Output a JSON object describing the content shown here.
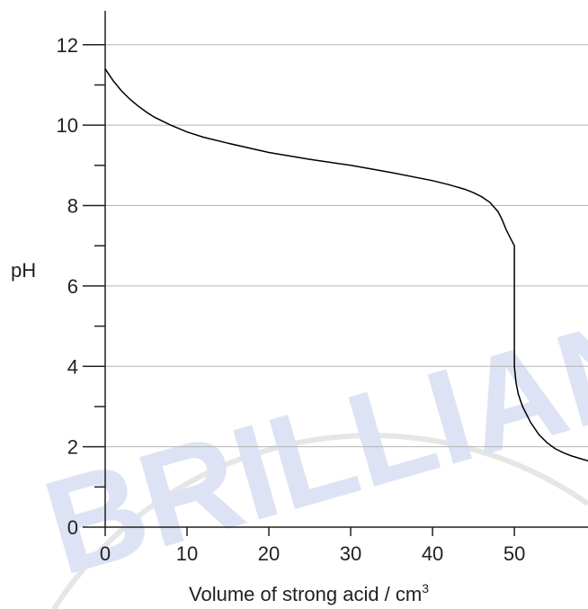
{
  "chart_data": {
    "type": "line",
    "xlabel": "Volume of strong acid / cm",
    "xlabel_superscript": "3",
    "ylabel": "pH",
    "xlim": [
      0,
      59
    ],
    "ylim": [
      0,
      12.8
    ],
    "x_ticks": [
      "0",
      "10",
      "20",
      "30",
      "40",
      "50"
    ],
    "y_ticks": [
      "0",
      "2",
      "4",
      "6",
      "8",
      "10",
      "12"
    ],
    "grid": "horizontal at even pH values",
    "series": [
      {
        "x": [
          0,
          1,
          2,
          3,
          4,
          5,
          6,
          8,
          10,
          12,
          15,
          20,
          25,
          30,
          35,
          40,
          42,
          44,
          45,
          46,
          47,
          48,
          48.5,
          49,
          49.5,
          50,
          50,
          50.2,
          50.5,
          51,
          52,
          53,
          54,
          55,
          56,
          57,
          58,
          59
        ],
        "y": [
          11.4,
          11.1,
          10.85,
          10.65,
          10.48,
          10.33,
          10.2,
          10.0,
          9.83,
          9.7,
          9.55,
          9.32,
          9.15,
          9.0,
          8.82,
          8.62,
          8.52,
          8.4,
          8.32,
          8.22,
          8.08,
          7.85,
          7.65,
          7.4,
          7.2,
          7.0,
          4.0,
          3.6,
          3.3,
          3.0,
          2.6,
          2.3,
          2.1,
          1.95,
          1.85,
          1.77,
          1.71,
          1.65
        ],
        "color": "#000000"
      }
    ],
    "watermark": "BRILLIAN",
    "colors": {
      "axis": "#231f20",
      "grid": "#b4b4b4",
      "line": "#000000",
      "watermark": "#dde3f4"
    }
  }
}
